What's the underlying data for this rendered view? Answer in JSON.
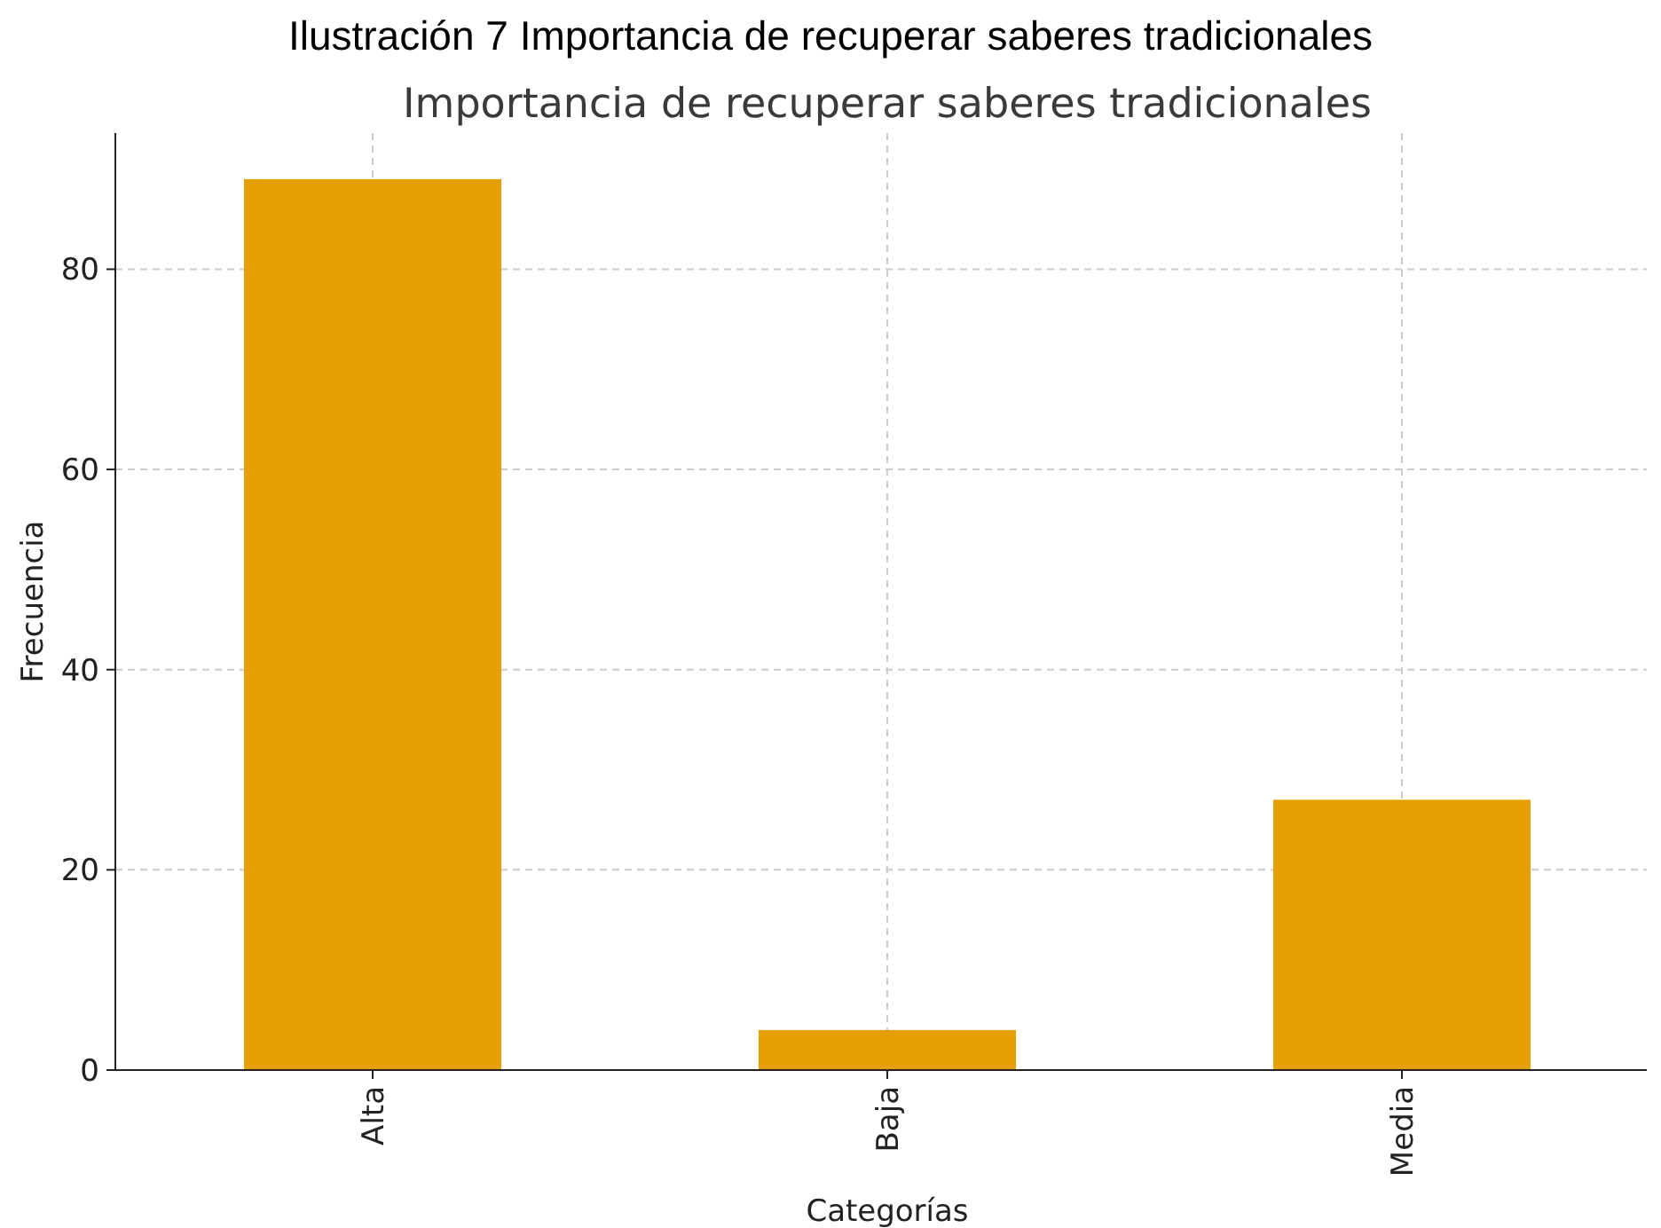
{
  "chart_data": {
    "type": "bar",
    "title": "Ilustración 7 Importancia de recuperar saberes tradicionales",
    "subtitle": "Importancia de recuperar saberes tradicionales",
    "xlabel": "Categorías",
    "ylabel": "Frecuencia",
    "categories": [
      "Alta",
      "Baja",
      "Media"
    ],
    "values": [
      89,
      4,
      27
    ],
    "color": "#e69f00",
    "ylim": [
      0,
      93.6
    ],
    "yticks": [
      0,
      20,
      40,
      60,
      80
    ],
    "grid": true
  }
}
